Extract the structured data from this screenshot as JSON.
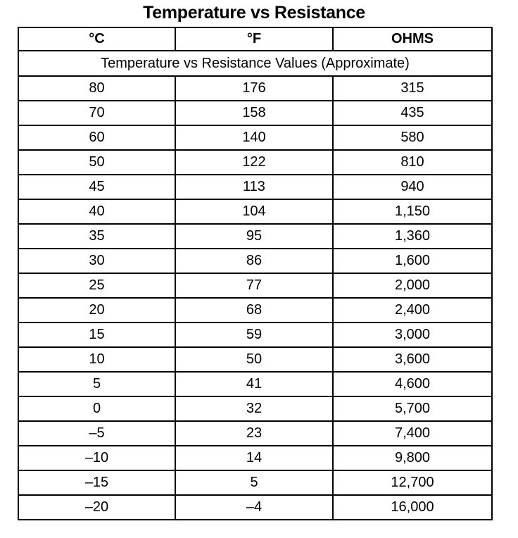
{
  "title": "Temperature vs Resistance",
  "headers": [
    "°C",
    "°F",
    "OHMS"
  ],
  "subtitle": "Temperature vs Resistance Values (Approximate)",
  "rows": [
    [
      "80",
      "176",
      "315"
    ],
    [
      "70",
      "158",
      "435"
    ],
    [
      "60",
      "140",
      "580"
    ],
    [
      "50",
      "122",
      "810"
    ],
    [
      "45",
      "113",
      "940"
    ],
    [
      "40",
      "104",
      "1,150"
    ],
    [
      "35",
      "95",
      "1,360"
    ],
    [
      "30",
      "86",
      "1,600"
    ],
    [
      "25",
      "77",
      "2,000"
    ],
    [
      "20",
      "68",
      "2,400"
    ],
    [
      "15",
      "59",
      "3,000"
    ],
    [
      "10",
      "50",
      "3,600"
    ],
    [
      "5",
      "41",
      "4,600"
    ],
    [
      "0",
      "32",
      "5,700"
    ],
    [
      "–5",
      "23",
      "7,400"
    ],
    [
      "–10",
      "14",
      "9,800"
    ],
    [
      "–15",
      "5",
      "12,700"
    ],
    [
      "–20",
      "–4",
      "16,000"
    ]
  ]
}
